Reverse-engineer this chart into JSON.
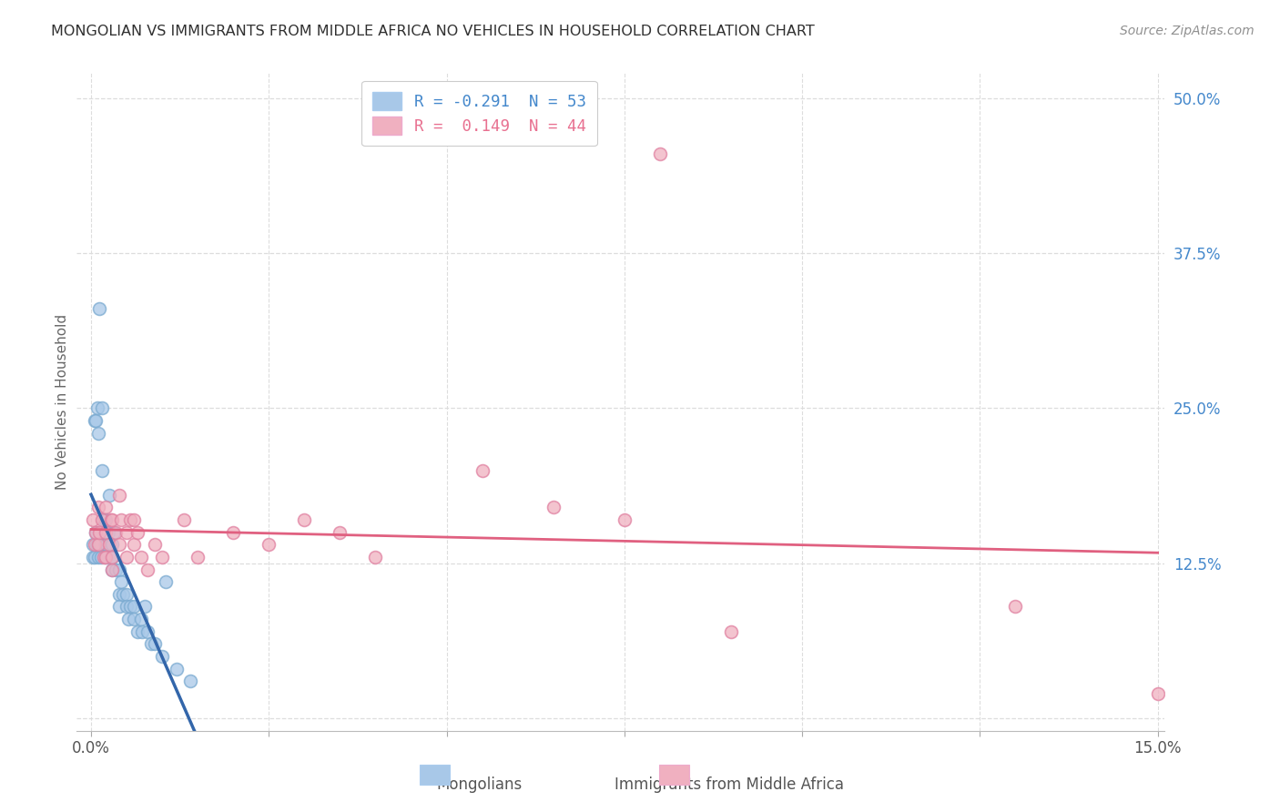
{
  "title": "MONGOLIAN VS IMMIGRANTS FROM MIDDLE AFRICA NO VEHICLES IN HOUSEHOLD CORRELATION CHART",
  "source": "Source: ZipAtlas.com",
  "ylabel": "No Vehicles in Household",
  "mongolian_color": "#a8c8e8",
  "mongolian_edge_color": "#7aaad0",
  "africa_color": "#f0b0c0",
  "africa_edge_color": "#e080a0",
  "mongolian_line_color": "#3366aa",
  "africa_line_color": "#e06080",
  "title_color": "#303030",
  "source_color": "#909090",
  "right_tick_color": "#4488cc",
  "grid_color": "#dddddd",
  "background_color": "#ffffff",
  "xlim": [
    0.0,
    0.15
  ],
  "ylim": [
    -0.01,
    0.52
  ],
  "mongolians_x": [
    0.0002,
    0.0003,
    0.0005,
    0.0005,
    0.0006,
    0.0007,
    0.0008,
    0.0009,
    0.001,
    0.001,
    0.001,
    0.001,
    0.0012,
    0.0013,
    0.0014,
    0.0015,
    0.0016,
    0.0018,
    0.002,
    0.002,
    0.002,
    0.002,
    0.0022,
    0.0024,
    0.0025,
    0.003,
    0.003,
    0.003,
    0.003,
    0.0032,
    0.0035,
    0.004,
    0.004,
    0.004,
    0.0042,
    0.0045,
    0.005,
    0.005,
    0.0052,
    0.0055,
    0.006,
    0.006,
    0.0065,
    0.007,
    0.0072,
    0.0075,
    0.008,
    0.0085,
    0.009,
    0.01,
    0.0105,
    0.012,
    0.014
  ],
  "mongolians_y": [
    0.14,
    0.13,
    0.24,
    0.13,
    0.24,
    0.15,
    0.14,
    0.25,
    0.14,
    0.23,
    0.14,
    0.13,
    0.33,
    0.14,
    0.13,
    0.25,
    0.2,
    0.16,
    0.14,
    0.14,
    0.13,
    0.16,
    0.14,
    0.15,
    0.18,
    0.14,
    0.13,
    0.13,
    0.12,
    0.15,
    0.12,
    0.12,
    0.1,
    0.09,
    0.11,
    0.1,
    0.1,
    0.09,
    0.08,
    0.09,
    0.09,
    0.08,
    0.07,
    0.08,
    0.07,
    0.09,
    0.07,
    0.06,
    0.06,
    0.05,
    0.11,
    0.04,
    0.03
  ],
  "africa_x": [
    0.0003,
    0.0005,
    0.0007,
    0.001,
    0.001,
    0.0012,
    0.0015,
    0.0018,
    0.002,
    0.002,
    0.002,
    0.0025,
    0.0028,
    0.003,
    0.003,
    0.003,
    0.0035,
    0.004,
    0.004,
    0.0042,
    0.005,
    0.005,
    0.0055,
    0.006,
    0.006,
    0.0065,
    0.007,
    0.008,
    0.009,
    0.01,
    0.013,
    0.015,
    0.02,
    0.025,
    0.03,
    0.035,
    0.04,
    0.055,
    0.065,
    0.075,
    0.09,
    0.13,
    0.15,
    0.08
  ],
  "africa_y": [
    0.16,
    0.14,
    0.15,
    0.17,
    0.14,
    0.15,
    0.16,
    0.13,
    0.15,
    0.13,
    0.17,
    0.14,
    0.16,
    0.12,
    0.16,
    0.13,
    0.15,
    0.18,
    0.14,
    0.16,
    0.15,
    0.13,
    0.16,
    0.14,
    0.16,
    0.15,
    0.13,
    0.12,
    0.14,
    0.13,
    0.16,
    0.13,
    0.15,
    0.14,
    0.16,
    0.15,
    0.13,
    0.2,
    0.17,
    0.16,
    0.07,
    0.09,
    0.02,
    0.455
  ],
  "legend_texts": [
    "R = -0.291  N = 53",
    "R =  0.149  N = 44"
  ],
  "legend_colors": [
    "#4488cc",
    "#e87090"
  ],
  "marker_size": 100,
  "right_ytick_vals": [
    0.0,
    0.125,
    0.25,
    0.375,
    0.5
  ],
  "right_ytick_labels": [
    "",
    "12.5%",
    "25.0%",
    "37.5%",
    "50.0%"
  ]
}
